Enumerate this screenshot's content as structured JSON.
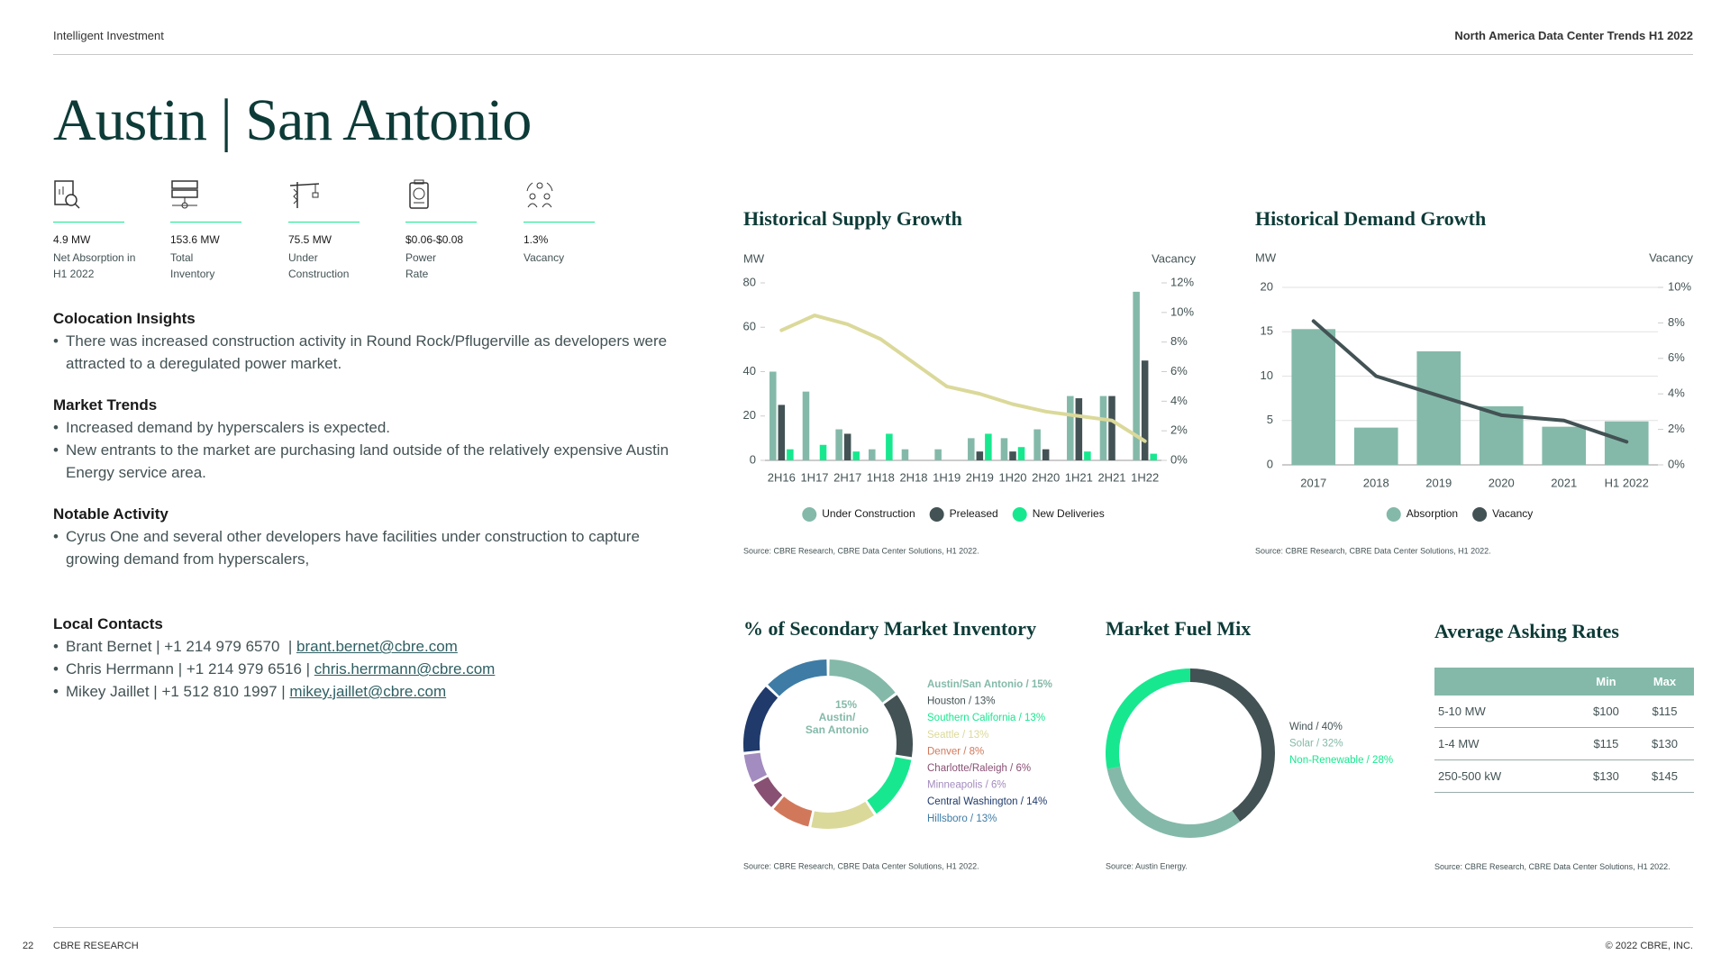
{
  "header": {
    "left": "Intelligent Investment",
    "right": "North America Data Center Trends H1 2022"
  },
  "title": "Austin | San Antonio",
  "kpis": [
    {
      "value": "4.9 MW",
      "label": "Net Absorption in H1 2022"
    },
    {
      "value": "153.6 MW",
      "label": "Total Inventory"
    },
    {
      "value": "75.5 MW",
      "label": "Under Construction"
    },
    {
      "value": "$0.06-$0.08",
      "label": "Power Rate"
    },
    {
      "value": "1.3%",
      "label": "Vacancy"
    }
  ],
  "sections": [
    {
      "heading": "Colocation Insights",
      "bullets": [
        "There was increased construction activity in Round Rock/Pflugerville as developers were attracted to a deregulated power market."
      ]
    },
    {
      "heading": "Market Trends",
      "bullets": [
        "Increased demand by hyperscalers is expected.",
        "New entrants to the market are purchasing land outside of the relatively expensive Austin Energy service area."
      ]
    },
    {
      "heading": "Notable Activity",
      "bullets": [
        "Cyrus One and several other developers have facilities under construction to capture growing demand from hyperscalers,"
      ]
    }
  ],
  "contacts": {
    "heading": "Local Contacts",
    "items": [
      {
        "text": "Brant Bernet | +1 214 979 6570  | ",
        "email": "brant.bernet@cbre.com"
      },
      {
        "text": "Chris Herrmann | +1 214 979 6516 | ",
        "email": "chris.herrmann@cbre.com"
      },
      {
        "text": "Mikey Jaillet | +1 512 810 1997 | ",
        "email": "mikey.jaillet@cbre.com"
      }
    ]
  },
  "chart_data": [
    {
      "type": "bar",
      "title": "Historical Supply Growth",
      "ylabel": "MW",
      "y2label": "Vacancy",
      "categories": [
        "2H16",
        "1H17",
        "2H17",
        "1H18",
        "2H18",
        "1H19",
        "2H19",
        "1H20",
        "2H20",
        "1H21",
        "2H21",
        "1H22"
      ],
      "series": [
        {
          "name": "Under Construction",
          "color": "#84b9a9",
          "values": [
            40,
            31,
            14,
            5,
            5,
            5,
            10,
            10,
            14,
            29,
            29,
            76
          ]
        },
        {
          "name": "Preleased",
          "color": "#435254",
          "values": [
            25,
            0,
            12,
            0,
            0,
            0,
            4,
            4,
            5,
            28,
            29,
            45
          ]
        },
        {
          "name": "New Deliveries",
          "color": "#17e88f",
          "values": [
            5,
            7,
            4,
            12,
            0,
            0,
            12,
            6,
            0,
            4,
            0,
            3
          ]
        },
        {
          "type": "line",
          "axis": "y2",
          "color": "#dbd99a",
          "values": [
            8.8,
            9.8,
            9.2,
            8.2,
            6.6,
            5.0,
            4.5,
            3.8,
            3.3,
            3.0,
            2.7,
            1.3
          ]
        }
      ],
      "ylim": [
        0,
        80
      ],
      "yticks": [
        0,
        20,
        40,
        60,
        80
      ],
      "y2lim": [
        0,
        12
      ],
      "y2ticks": [
        {
          "value": 0,
          "label": "0%"
        },
        {
          "value": 2,
          "label": "2%"
        },
        {
          "value": 4,
          "label": "4%"
        },
        {
          "value": 6,
          "label": "6%"
        },
        {
          "value": 8,
          "label": "8%"
        },
        {
          "value": 10,
          "label": "10%"
        },
        {
          "value": 12,
          "label": "12%"
        }
      ],
      "grid": false,
      "legend": "bottom",
      "source": "Source: CBRE Research, CBRE Data Center Solutions, H1 2022."
    },
    {
      "type": "bar",
      "title": "Historical Demand Growth",
      "ylabel": "MW",
      "y2label": "Vacancy",
      "categories": [
        "2017",
        "2018",
        "2019",
        "2020",
        "2021",
        "H1 2022"
      ],
      "series": [
        {
          "name": "Absorption",
          "color": "#84b9a9",
          "values": [
            15.3,
            4.2,
            12.8,
            6.6,
            4.3,
            4.9
          ]
        },
        {
          "name": "Vacancy",
          "type": "line",
          "axis": "y2",
          "color": "#435254",
          "values": [
            8.1,
            5.0,
            3.9,
            2.8,
            2.5,
            1.3
          ]
        }
      ],
      "ylim": [
        0,
        20
      ],
      "yticks": [
        0,
        5,
        10,
        15,
        20
      ],
      "y2lim": [
        0,
        10
      ],
      "y2ticks": [
        {
          "value": 0,
          "label": "0%"
        },
        {
          "value": 2,
          "label": "2%"
        },
        {
          "value": 4,
          "label": "4%"
        },
        {
          "value": 6,
          "label": "6%"
        },
        {
          "value": 8,
          "label": "8%"
        },
        {
          "value": 10,
          "label": "10%"
        }
      ],
      "grid": true,
      "legend": "bottom",
      "source": "Source: CBRE Research, CBRE Data Center Solutions, H1 2022."
    },
    {
      "type": "donut",
      "title": "% of Secondary Market Inventory",
      "categories": [
        "Austin/San Antonio / 15%",
        "Houston / 13%",
        "Southern California / 13%",
        "Seattle / 13%",
        "Denver / 8%",
        "Charlotte/Raleigh / 6%",
        "Minneapolis / 6%",
        "Central Washington / 14%",
        "Hillsboro / 13%"
      ],
      "values": [
        15,
        13,
        13,
        13,
        8,
        6,
        6,
        14,
        13
      ],
      "colors": [
        "#84b9a9",
        "#435254",
        "#17e88f",
        "#dbd99a",
        "#d2785a",
        "#885073",
        "#a38cbf",
        "#1f3a6b",
        "#3e7ca6"
      ],
      "center_label": [
        "15%",
        "Austin/",
        "San Antonio"
      ],
      "source": "Source: CBRE Research, CBRE Data Center Solutions, H1 2022."
    },
    {
      "type": "donut",
      "title": "Market Fuel Mix",
      "categories": [
        "Wind / 40%",
        "Solar / 32%",
        "Non-Renewable / 28%"
      ],
      "values": [
        40,
        32,
        28
      ],
      "colors": [
        "#435254",
        "#84b9a9",
        "#17e88f"
      ],
      "source": "Source: Austin Energy."
    }
  ],
  "rates": {
    "title": "Average Asking Rates",
    "columns": [
      "Min",
      "Max"
    ],
    "rows": [
      [
        "5-10 MW",
        "$100",
        "$115"
      ],
      [
        "1-4 MW",
        "$115",
        "$130"
      ],
      [
        "250-500 kW",
        "$130",
        "$145"
      ]
    ],
    "source": "Source: CBRE Research, CBRE Data Center Solutions, H1 2022."
  },
  "footer": {
    "page": "22",
    "left": "CBRE RESEARCH",
    "right": "© 2022 CBRE, INC."
  }
}
